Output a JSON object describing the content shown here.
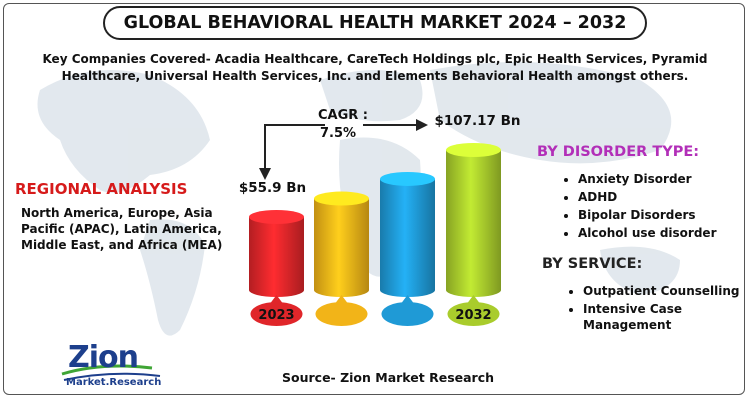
{
  "title": "GLOBAL BEHAVIORAL HEALTH MARKET 2024 – 2032",
  "subtitle_line1": "Key Companies Covered- Acadia Healthcare, CareTech Holdings plc, Epic Health Services, Pyramid",
  "subtitle_line2": "Healthcare, Universal Health Services, Inc. and Elements Behavioral Health amongst others.",
  "regional": {
    "title": "REGIONAL ANALYSIS",
    "text": "North America, Europe, Asia Pacific (APAC), Latin America, Middle East, and Africa (MEA)"
  },
  "disorder": {
    "title": "BY DISORDER TYPE:",
    "items": [
      "Anxiety Disorder",
      "ADHD",
      "Bipolar Disorders",
      "Alcohol use disorder"
    ]
  },
  "service": {
    "title": "BY SERVICE:",
    "items": [
      "Outpatient Counselling",
      "Intensive Case Management"
    ]
  },
  "source": "Source- Zion Market Research",
  "logo": {
    "word": "Zion",
    "sub": "Market.Research"
  },
  "chart_data": {
    "type": "bar",
    "categories": [
      "2023",
      "",
      "",
      "2032"
    ],
    "values": [
      55.9,
      70,
      85,
      107.17
    ],
    "labels": [
      "$55.9 Bn",
      "",
      "",
      "$107.17 Bn"
    ],
    "cagr_label": "CAGR :",
    "cagr_value": "7.5%",
    "colors": [
      "#e0262a",
      "#f2b418",
      "#1f9ad6",
      "#a9cc2c"
    ]
  }
}
